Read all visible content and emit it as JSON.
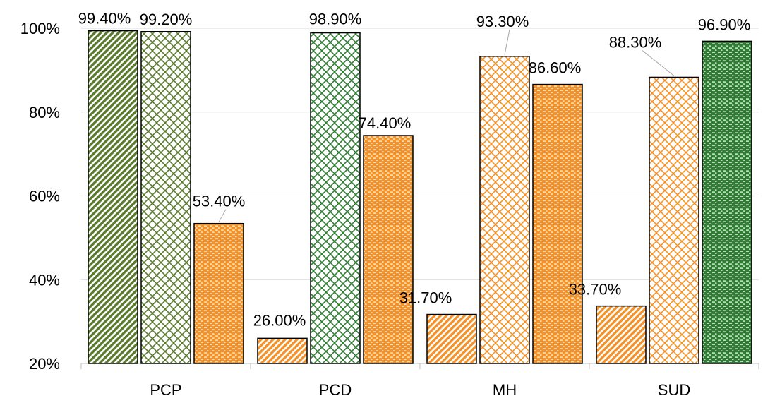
{
  "colors": {
    "green_dark": "#2e7d32",
    "green_olive": "#5a7a2e",
    "orange": "#f4922a"
  },
  "chart_data": {
    "type": "bar",
    "categories": [
      "PCP",
      "PCD",
      "MH",
      "SUD"
    ],
    "ylim": [
      20,
      100
    ],
    "yticks": [
      "20%",
      "40%",
      "60%",
      "80%",
      "100%"
    ],
    "ytick_values": [
      20,
      40,
      60,
      80,
      100
    ],
    "grid": true,
    "legend": "none",
    "groups": [
      {
        "category": "PCP",
        "bars": [
          {
            "value": 99.4,
            "label": "99.40%",
            "color": "#5a7a2e",
            "pattern": "diagonal"
          },
          {
            "value": 99.2,
            "label": "99.20%",
            "color": "#5a7a2e",
            "pattern": "lattice"
          },
          {
            "value": 53.4,
            "label": "53.40%",
            "color": "#f4922a",
            "pattern": "dashes"
          }
        ]
      },
      {
        "category": "PCD",
        "bars": [
          {
            "value": 26.0,
            "label": "26.00%",
            "color": "#f4922a",
            "pattern": "diagonal"
          },
          {
            "value": 98.9,
            "label": "98.90%",
            "color": "#2e7d32",
            "pattern": "lattice"
          },
          {
            "value": 74.4,
            "label": "74.40%",
            "color": "#f4922a",
            "pattern": "dashes"
          }
        ]
      },
      {
        "category": "MH",
        "bars": [
          {
            "value": 31.7,
            "label": "31.70%",
            "color": "#f4922a",
            "pattern": "diagonal"
          },
          {
            "value": 93.3,
            "label": "93.30%",
            "color": "#f4922a",
            "pattern": "lattice"
          },
          {
            "value": 86.6,
            "label": "86.60%",
            "color": "#f4922a",
            "pattern": "dashes"
          }
        ]
      },
      {
        "category": "SUD",
        "bars": [
          {
            "value": 33.7,
            "label": "33.70%",
            "color": "#f4922a",
            "pattern": "diagonal"
          },
          {
            "value": 88.3,
            "label": "88.30%",
            "color": "#f4922a",
            "pattern": "lattice"
          },
          {
            "value": 96.9,
            "label": "96.90%",
            "color": "#2e7d32",
            "pattern": "dashes"
          }
        ]
      }
    ]
  }
}
